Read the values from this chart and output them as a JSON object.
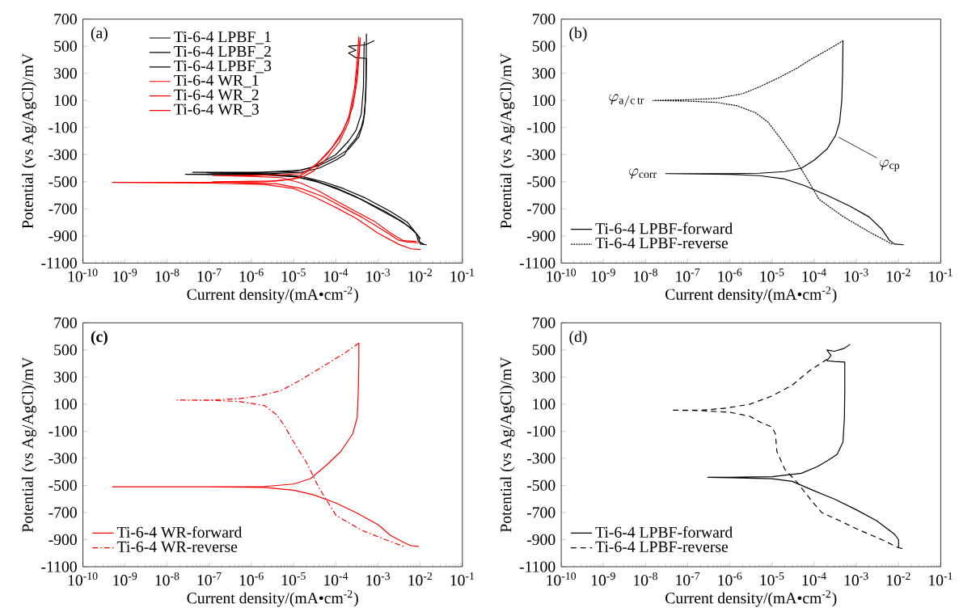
{
  "chart_data": [
    {
      "type": "line",
      "log": "x",
      "xlabel": "Current density/(mA•cm$^{-2}$)",
      "ylabel": "Potential (vs Ag/AgCl)/mV",
      "legend": "top left",
      "annotations": [
        "(a)"
      ],
      "xlim": [
        1e-10,
        0.1
      ],
      "ylim": [
        -1100,
        700
      ],
      "xticks": [
        {
          "value": 1e-10,
          "label": "10$^{-10}$"
        },
        {
          "value": 1e-09,
          "label": "10$^{-9}$"
        },
        {
          "value": 1e-08,
          "label": "10$^{-8}$"
        },
        {
          "value": 1e-07,
          "label": "10$^{-7}$"
        },
        {
          "value": 1e-06,
          "label": "10$^{-6}$"
        },
        {
          "value": 1e-05,
          "label": "10$^{-5}$"
        },
        {
          "value": 0.0001,
          "label": "10$^{-4}$"
        },
        {
          "value": 0.001,
          "label": "10$^{-3}$"
        },
        {
          "value": 0.01,
          "label": "10$^{-2}$"
        },
        {
          "value": 0.1,
          "label": "10$^{-1}$"
        }
      ],
      "yticks": [
        700,
        500,
        300,
        100,
        -100,
        -300,
        -500,
        -700,
        -900,
        -1100
      ],
      "series": [
        {
          "name": "Ti-6-4 LPBF_1",
          "color": "#000000",
          "line_style": "solid",
          "x": [
            0.014,
            0.01,
            0.009,
            0.005,
            0.002,
            0.0005,
            0.00015,
            5e-05,
            1.5e-05,
            2e-06,
            4e-08,
            2e-06,
            1.5e-05,
            4e-05,
            0.0001,
            0.0002,
            0.00035,
            0.00045,
            0.0005,
            0.00052,
            0.00053
          ],
          "values": [
            -965,
            -960,
            -900,
            -800,
            -720,
            -620,
            -550,
            -500,
            -460,
            -440,
            -430,
            -428,
            -415,
            -380,
            -320,
            -260,
            -170,
            -60,
            100,
            300,
            590
          ]
        },
        {
          "name": "Ti-6-4 LPBF_2",
          "color": "#000000",
          "line_style": "solid",
          "x": [
            0.012,
            0.009,
            0.008,
            0.004,
            0.0015,
            0.0004,
            0.00012,
            4e-05,
            1.2e-05,
            2e-06,
            2.7e-08,
            2e-06,
            1.5e-05,
            4e-05,
            0.0001,
            0.00016,
            0.0002,
            0.0003,
            0.0004,
            0.00048,
            0.00052,
            0.00053,
            0.0003,
            0.0002,
            0.0003,
            0.0002,
            0.0005,
            0.0008
          ],
          "values": [
            -960,
            -940,
            -880,
            -800,
            -720,
            -630,
            -560,
            -505,
            -465,
            -450,
            -445,
            -442,
            -430,
            -400,
            -340,
            -300,
            -245,
            -180,
            -100,
            0,
            200,
            410,
            415,
            450,
            470,
            500,
            510,
            540
          ]
        },
        {
          "name": "Ti-6-4 LPBF_3",
          "color": "#000000",
          "line_style": "solid",
          "x": [
            0.01,
            0.009,
            0.006,
            0.003,
            0.001,
            0.0003,
            0.0001,
            3e-05,
            8e-06,
            1e-06,
            1e-07,
            1e-06,
            1e-05,
            3e-05,
            0.0001,
            0.0002,
            0.0003,
            0.0004,
            0.00045,
            0.00046,
            0.00047
          ],
          "values": [
            -920,
            -900,
            -840,
            -780,
            -700,
            -610,
            -545,
            -490,
            -455,
            -440,
            -435,
            -433,
            -425,
            -390,
            -300,
            -200,
            -120,
            0,
            200,
            400,
            530
          ]
        },
        {
          "name": "Ti-6-4 WR_1",
          "color": "#ff0000",
          "line_style": "solid",
          "x": [
            0.01,
            0.006,
            0.003,
            0.001,
            0.0003,
            0.0001,
            3e-05,
            1e-05,
            2e-06,
            1e-07,
            5e-10,
            1e-07,
            2e-06,
            1e-05,
            2e-05,
            4e-05,
            8e-05,
            0.00015,
            0.00025,
            0.00032,
            0.00036,
            0.00038
          ],
          "values": [
            -1000,
            -995,
            -960,
            -880,
            -770,
            -690,
            -610,
            -550,
            -520,
            -510,
            -505,
            -505,
            -500,
            -480,
            -430,
            -350,
            -250,
            -120,
            50,
            250,
            450,
            560
          ]
        },
        {
          "name": "Ti-6-4 WR_2",
          "color": "#ff0000",
          "line_style": "solid",
          "x": [
            0.009,
            0.005,
            0.003,
            0.0012,
            0.0004,
            0.00015,
            5e-05,
            1.5e-05,
            4e-06,
            1.2e-07,
            4e-06,
            1.5e-05,
            3e-05,
            6e-05,
            0.00012,
            0.0002,
            0.00028,
            0.00034,
            0.00037
          ],
          "values": [
            -950,
            -945,
            -930,
            -850,
            -760,
            -690,
            -610,
            -550,
            -515,
            -500,
            -495,
            -470,
            -420,
            -330,
            -210,
            -60,
            150,
            400,
            540
          ]
        },
        {
          "name": "Ti-6-4 WR_3",
          "color": "#ff0000",
          "line_style": "solid",
          "x": [
            0.008,
            0.004,
            0.002,
            0.0008,
            0.0003,
            0.0001,
            4e-05,
            1.5e-05,
            5e-06,
            1e-06,
            1.2e-07,
            1e-06,
            5e-06,
            1.5e-05,
            3e-05,
            6e-05,
            0.00012,
            0.0002,
            0.00028,
            0.00032,
            0.00035
          ],
          "values": [
            -940,
            -935,
            -880,
            -790,
            -720,
            -640,
            -570,
            -510,
            -470,
            -460,
            -455,
            -453,
            -450,
            -440,
            -390,
            -300,
            -180,
            -30,
            200,
            400,
            570
          ]
        }
      ]
    },
    {
      "type": "line",
      "log": "x",
      "xlabel": "Current density/(mA•cm$^{-2}$)",
      "ylabel": "Potential (vs Ag/AgCl)/mV",
      "legend": "bottom left",
      "annotations": [
        "(b)",
        {
          "text": "\\varphi_{\\mathrm{a/c\\,tr}}",
          "x": 1.5e-08,
          "y": 100
        },
        {
          "text": "\\varphi_{\\mathrm{corr}}",
          "x": 3e-08,
          "y": -440
        },
        {
          "text": "\\varphi_{\\mathrm{cp}}",
          "x": 0.00032,
          "y": -160
        }
      ],
      "xlim": [
        1e-10,
        0.1
      ],
      "ylim": [
        -1100,
        700
      ],
      "xticks": [
        {
          "value": 1e-10,
          "label": "10$^{-10}$"
        },
        {
          "value": 1e-09,
          "label": "10$^{-9}$"
        },
        {
          "value": 1e-08,
          "label": "10$^{-8}$"
        },
        {
          "value": 1e-07,
          "label": "10$^{-7}$"
        },
        {
          "value": 1e-06,
          "label": "10$^{-6}$"
        },
        {
          "value": 1e-05,
          "label": "10$^{-5}$"
        },
        {
          "value": 0.0001,
          "label": "10$^{-4}$"
        },
        {
          "value": 0.001,
          "label": "10$^{-3}$"
        },
        {
          "value": 0.01,
          "label": "10$^{-2}$"
        },
        {
          "value": 0.1,
          "label": "10$^{-1}$"
        }
      ],
      "yticks": [
        700,
        500,
        300,
        100,
        -100,
        -300,
        -500,
        -700,
        -900,
        -1100
      ],
      "series": [
        {
          "name": "Ti-6-4 LPBF-forward",
          "color": "#000000",
          "line_style": "solid",
          "x": [
            0.013,
            0.008,
            0.006,
            0.004,
            0.002,
            0.0007,
            0.0002,
            6e-05,
            2e-05,
            5e-06,
            1e-06,
            3e-08,
            1e-06,
            5e-06,
            2e-05,
            5e-05,
            0.0001,
            0.0002,
            0.00032,
            0.0004,
            0.00045,
            0.00047,
            0.00048
          ],
          "values": [
            -965,
            -960,
            -930,
            -850,
            -760,
            -680,
            -600,
            -530,
            -480,
            -455,
            -445,
            -440,
            -440,
            -437,
            -425,
            -400,
            -340,
            -260,
            -160,
            -60,
            100,
            300,
            540
          ]
        },
        {
          "name": "Ti-6-4 LPBF-reverse",
          "color": "#000000",
          "line_style": "dotted",
          "x": [
            0.00048,
            0.0002,
            8e-05,
            4e-05,
            1.5e-05,
            5e-06,
            2e-06,
            5e-07,
            1e-07,
            1.5e-08,
            1e-07,
            5e-07,
            1.5e-06,
            4e-06,
            8e-06,
            1.5e-05,
            3e-05,
            6e-05,
            0.00013,
            0.0005,
            0.002,
            0.007
          ],
          "values": [
            540,
            470,
            400,
            340,
            270,
            200,
            150,
            115,
            105,
            100,
            95,
            85,
            60,
            10,
            -60,
            -170,
            -300,
            -450,
            -630,
            -760,
            -870,
            -960
          ]
        }
      ]
    },
    {
      "type": "line",
      "log": "x",
      "xlabel": "Current density/(mA•cm$^{-2}$)",
      "ylabel": "Potential (vs Ag/AgCl)/mV",
      "legend": "bottom left",
      "annotations": [
        "**(c)**"
      ],
      "xlim": [
        1e-10,
        0.1
      ],
      "ylim": [
        -1100,
        700
      ],
      "xticks": [
        {
          "value": 1e-10,
          "label": "10$^{-10}$"
        },
        {
          "value": 1e-09,
          "label": "10$^{-9}$"
        },
        {
          "value": 1e-08,
          "label": "10$^{-8}$"
        },
        {
          "value": 1e-07,
          "label": "10$^{-7}$"
        },
        {
          "value": 1e-06,
          "label": "10$^{-6}$"
        },
        {
          "value": 1e-05,
          "label": "10$^{-5}$"
        },
        {
          "value": 0.0001,
          "label": "10$^{-4}$"
        },
        {
          "value": 0.001,
          "label": "10$^{-3}$"
        },
        {
          "value": 0.01,
          "label": "10$^{-2}$"
        },
        {
          "value": 0.1,
          "label": "10$^{-1}$"
        }
      ],
      "yticks": [
        700,
        500,
        300,
        100,
        -100,
        -300,
        -500,
        -700,
        -900,
        -1100
      ],
      "series": [
        {
          "name": "Ti-6-4 WR-forward",
          "color": "#ff0000",
          "line_style": "solid",
          "x": [
            0.009,
            0.006,
            0.004,
            0.002,
            0.001,
            0.0003,
            0.0001,
            3e-05,
            1e-05,
            2e-06,
            1e-07,
            5e-10,
            1e-07,
            2e-06,
            1e-05,
            2.5e-05,
            6e-05,
            0.00013,
            0.00025,
            0.00032,
            0.00034,
            0.00035,
            0.00035
          ],
          "values": [
            -950,
            -945,
            -920,
            -870,
            -790,
            -700,
            -630,
            -570,
            -535,
            -515,
            -510,
            -510,
            -510,
            -508,
            -490,
            -450,
            -350,
            -250,
            -120,
            0,
            200,
            400,
            550
          ]
        },
        {
          "name": "Ti-6-4 WR-reverse",
          "color": "#ff0000",
          "line_style": "dashdot",
          "x": [
            0.00035,
            0.00015,
            5e-05,
            1.5e-05,
            5e-06,
            1.5e-06,
            5e-07,
            1e-07,
            1.7e-08,
            1e-07,
            5e-07,
            2e-06,
            4e-06,
            6e-06,
            1e-05,
            2e-05,
            4e-05,
            0.0001,
            0.0004,
            0.0015,
            0.004
          ],
          "values": [
            550,
            470,
            380,
            280,
            200,
            160,
            140,
            130,
            130,
            128,
            120,
            90,
            20,
            -60,
            -180,
            -330,
            -520,
            -720,
            -830,
            -900,
            -950
          ]
        }
      ]
    },
    {
      "type": "line",
      "log": "x",
      "xlabel": "Current density/(mA•cm$^{-2}$)",
      "ylabel": "Potential (vs Ag/AgCl)/mV",
      "legend": "bottom left",
      "annotations": [
        "(d)"
      ],
      "xlim": [
        1e-10,
        0.1
      ],
      "ylim": [
        -1100,
        700
      ],
      "xticks": [
        {
          "value": 1e-10,
          "label": "10$^{-10}$"
        },
        {
          "value": 1e-09,
          "label": "10$^{-9}$"
        },
        {
          "value": 1e-08,
          "label": "10$^{-8}$"
        },
        {
          "value": 1e-07,
          "label": "10$^{-7}$"
        },
        {
          "value": 1e-06,
          "label": "10$^{-6}$"
        },
        {
          "value": 1e-05,
          "label": "10$^{-5}$"
        },
        {
          "value": 0.0001,
          "label": "10$^{-4}$"
        },
        {
          "value": 0.001,
          "label": "10$^{-3}$"
        },
        {
          "value": 0.01,
          "label": "10$^{-2}$"
        },
        {
          "value": 0.1,
          "label": "10$^{-1}$"
        }
      ],
      "yticks": [
        700,
        500,
        300,
        100,
        -100,
        -300,
        -500,
        -700,
        -900,
        -1100
      ],
      "series": [
        {
          "name": "Ti-6-4 LPBF-forward",
          "color": "#000000",
          "line_style": "solid",
          "x": [
            0.012,
            0.01,
            0.01,
            0.008,
            0.003,
            0.001,
            0.0003,
            0.0001,
            3e-05,
            1e-05,
            1e-06,
            3e-07,
            1e-06,
            1e-05,
            5e-05,
            0.00012,
            0.0002,
            0.00035,
            0.00048,
            0.00052,
            0.00053,
            0.00053,
            0.0003,
            0.0002,
            0.00025,
            0.0002,
            0.0003,
            0.0005,
            0.0007
          ],
          "values": [
            -965,
            -960,
            -900,
            -860,
            -760,
            -680,
            -600,
            -540,
            -470,
            -450,
            -443,
            -440,
            -440,
            -435,
            -410,
            -360,
            -320,
            -270,
            -180,
            0,
            200,
            410,
            415,
            420,
            460,
            500,
            490,
            510,
            540
          ]
        },
        {
          "name": "Ti-6-4 LPBF-reverse",
          "color": "#000000",
          "line_style": "dashed",
          "x": [
            0.0002,
            8e-05,
            3e-05,
            1e-05,
            3e-06,
            8e-07,
            2e-07,
            4e-08,
            2e-07,
            1e-06,
            3e-06,
            5e-06,
            1e-05,
            1.2e-05,
            1.3e-05,
            2e-05,
            4e-05,
            8e-05,
            0.00015,
            0.0004,
            0.001,
            0.004,
            0.01
          ],
          "values": [
            430,
            350,
            240,
            160,
            100,
            70,
            55,
            55,
            52,
            40,
            10,
            -30,
            -70,
            -120,
            -250,
            -380,
            -480,
            -600,
            -700,
            -760,
            -820,
            -900,
            -960
          ]
        }
      ]
    }
  ]
}
